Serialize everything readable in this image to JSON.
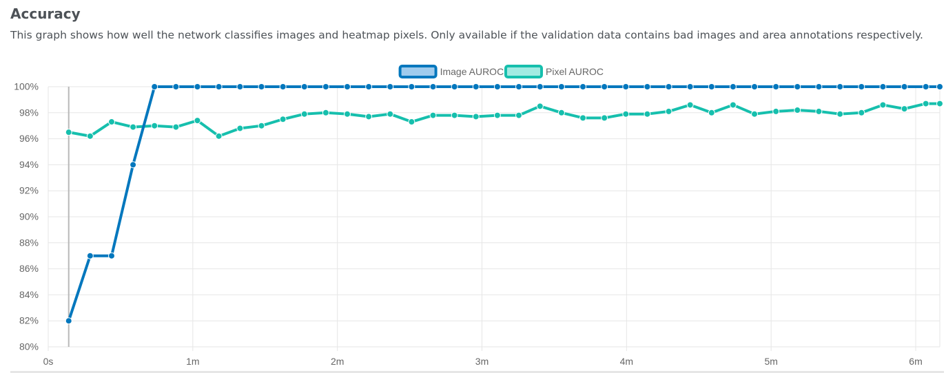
{
  "header": {
    "title": "Accuracy",
    "description": "This graph shows how well the network classifies images and heatmap pixels. Only available if the validation data contains bad images and area annotations respectively."
  },
  "chart_data": {
    "type": "line",
    "xlabel": "",
    "ylabel": "",
    "grid": true,
    "legend_position": "top-center",
    "x_unit": "seconds",
    "xlim": [
      0,
      370
    ],
    "ylim": [
      80,
      100
    ],
    "x_ticks": [
      {
        "value": 0,
        "label": "0s"
      },
      {
        "value": 60,
        "label": "1m"
      },
      {
        "value": 120,
        "label": "2m"
      },
      {
        "value": 180,
        "label": "3m"
      },
      {
        "value": 240,
        "label": "4m"
      },
      {
        "value": 300,
        "label": "5m"
      },
      {
        "value": 360,
        "label": "6m"
      }
    ],
    "y_ticks": [
      {
        "value": 80,
        "label": "80%"
      },
      {
        "value": 82,
        "label": "82%"
      },
      {
        "value": 84,
        "label": "84%"
      },
      {
        "value": 86,
        "label": "86%"
      },
      {
        "value": 88,
        "label": "88%"
      },
      {
        "value": 90,
        "label": "90%"
      },
      {
        "value": 92,
        "label": "92%"
      },
      {
        "value": 94,
        "label": "94%"
      },
      {
        "value": 96,
        "label": "96%"
      },
      {
        "value": 98,
        "label": "98%"
      },
      {
        "value": 100,
        "label": "100%"
      }
    ],
    "x": [
      8.5,
      17.4,
      26.3,
      35.2,
      44.1,
      53.0,
      61.9,
      70.8,
      79.6,
      88.5,
      97.4,
      106.3,
      115.2,
      124.1,
      133.0,
      141.9,
      150.8,
      159.7,
      168.6,
      177.5,
      186.4,
      195.3,
      204.1,
      213.0,
      221.9,
      230.8,
      239.7,
      248.6,
      257.5,
      266.4,
      275.3,
      284.2,
      293.1,
      302.0,
      310.9,
      319.8,
      328.6,
      337.5,
      346.4,
      355.3,
      364.2,
      370.0
    ],
    "series": [
      {
        "name": "Image AUROC",
        "color": "#0277bd",
        "values": [
          82.0,
          87.0,
          87.0,
          94.0,
          100.0,
          100.0,
          100.0,
          100.0,
          100.0,
          100.0,
          100.0,
          100.0,
          100.0,
          100.0,
          100.0,
          100.0,
          100.0,
          100.0,
          100.0,
          100.0,
          100.0,
          100.0,
          100.0,
          100.0,
          100.0,
          100.0,
          100.0,
          100.0,
          100.0,
          100.0,
          100.0,
          100.0,
          100.0,
          100.0,
          100.0,
          100.0,
          100.0,
          100.0,
          100.0,
          100.0,
          100.0,
          100.0
        ]
      },
      {
        "name": "Pixel AUROC",
        "color": "#16bfad",
        "values": [
          96.5,
          96.2,
          97.3,
          96.9,
          97.0,
          96.9,
          97.4,
          96.2,
          96.8,
          97.0,
          97.5,
          97.9,
          98.0,
          97.9,
          97.7,
          97.9,
          97.3,
          97.8,
          97.8,
          97.7,
          97.8,
          97.8,
          98.5,
          98.0,
          97.6,
          97.6,
          97.9,
          97.9,
          98.1,
          98.6,
          98.0,
          98.6,
          97.9,
          98.1,
          98.2,
          98.1,
          97.9,
          98.0,
          98.6,
          98.3,
          98.7,
          98.7
        ]
      }
    ],
    "marker": {
      "x": 8.5
    }
  }
}
